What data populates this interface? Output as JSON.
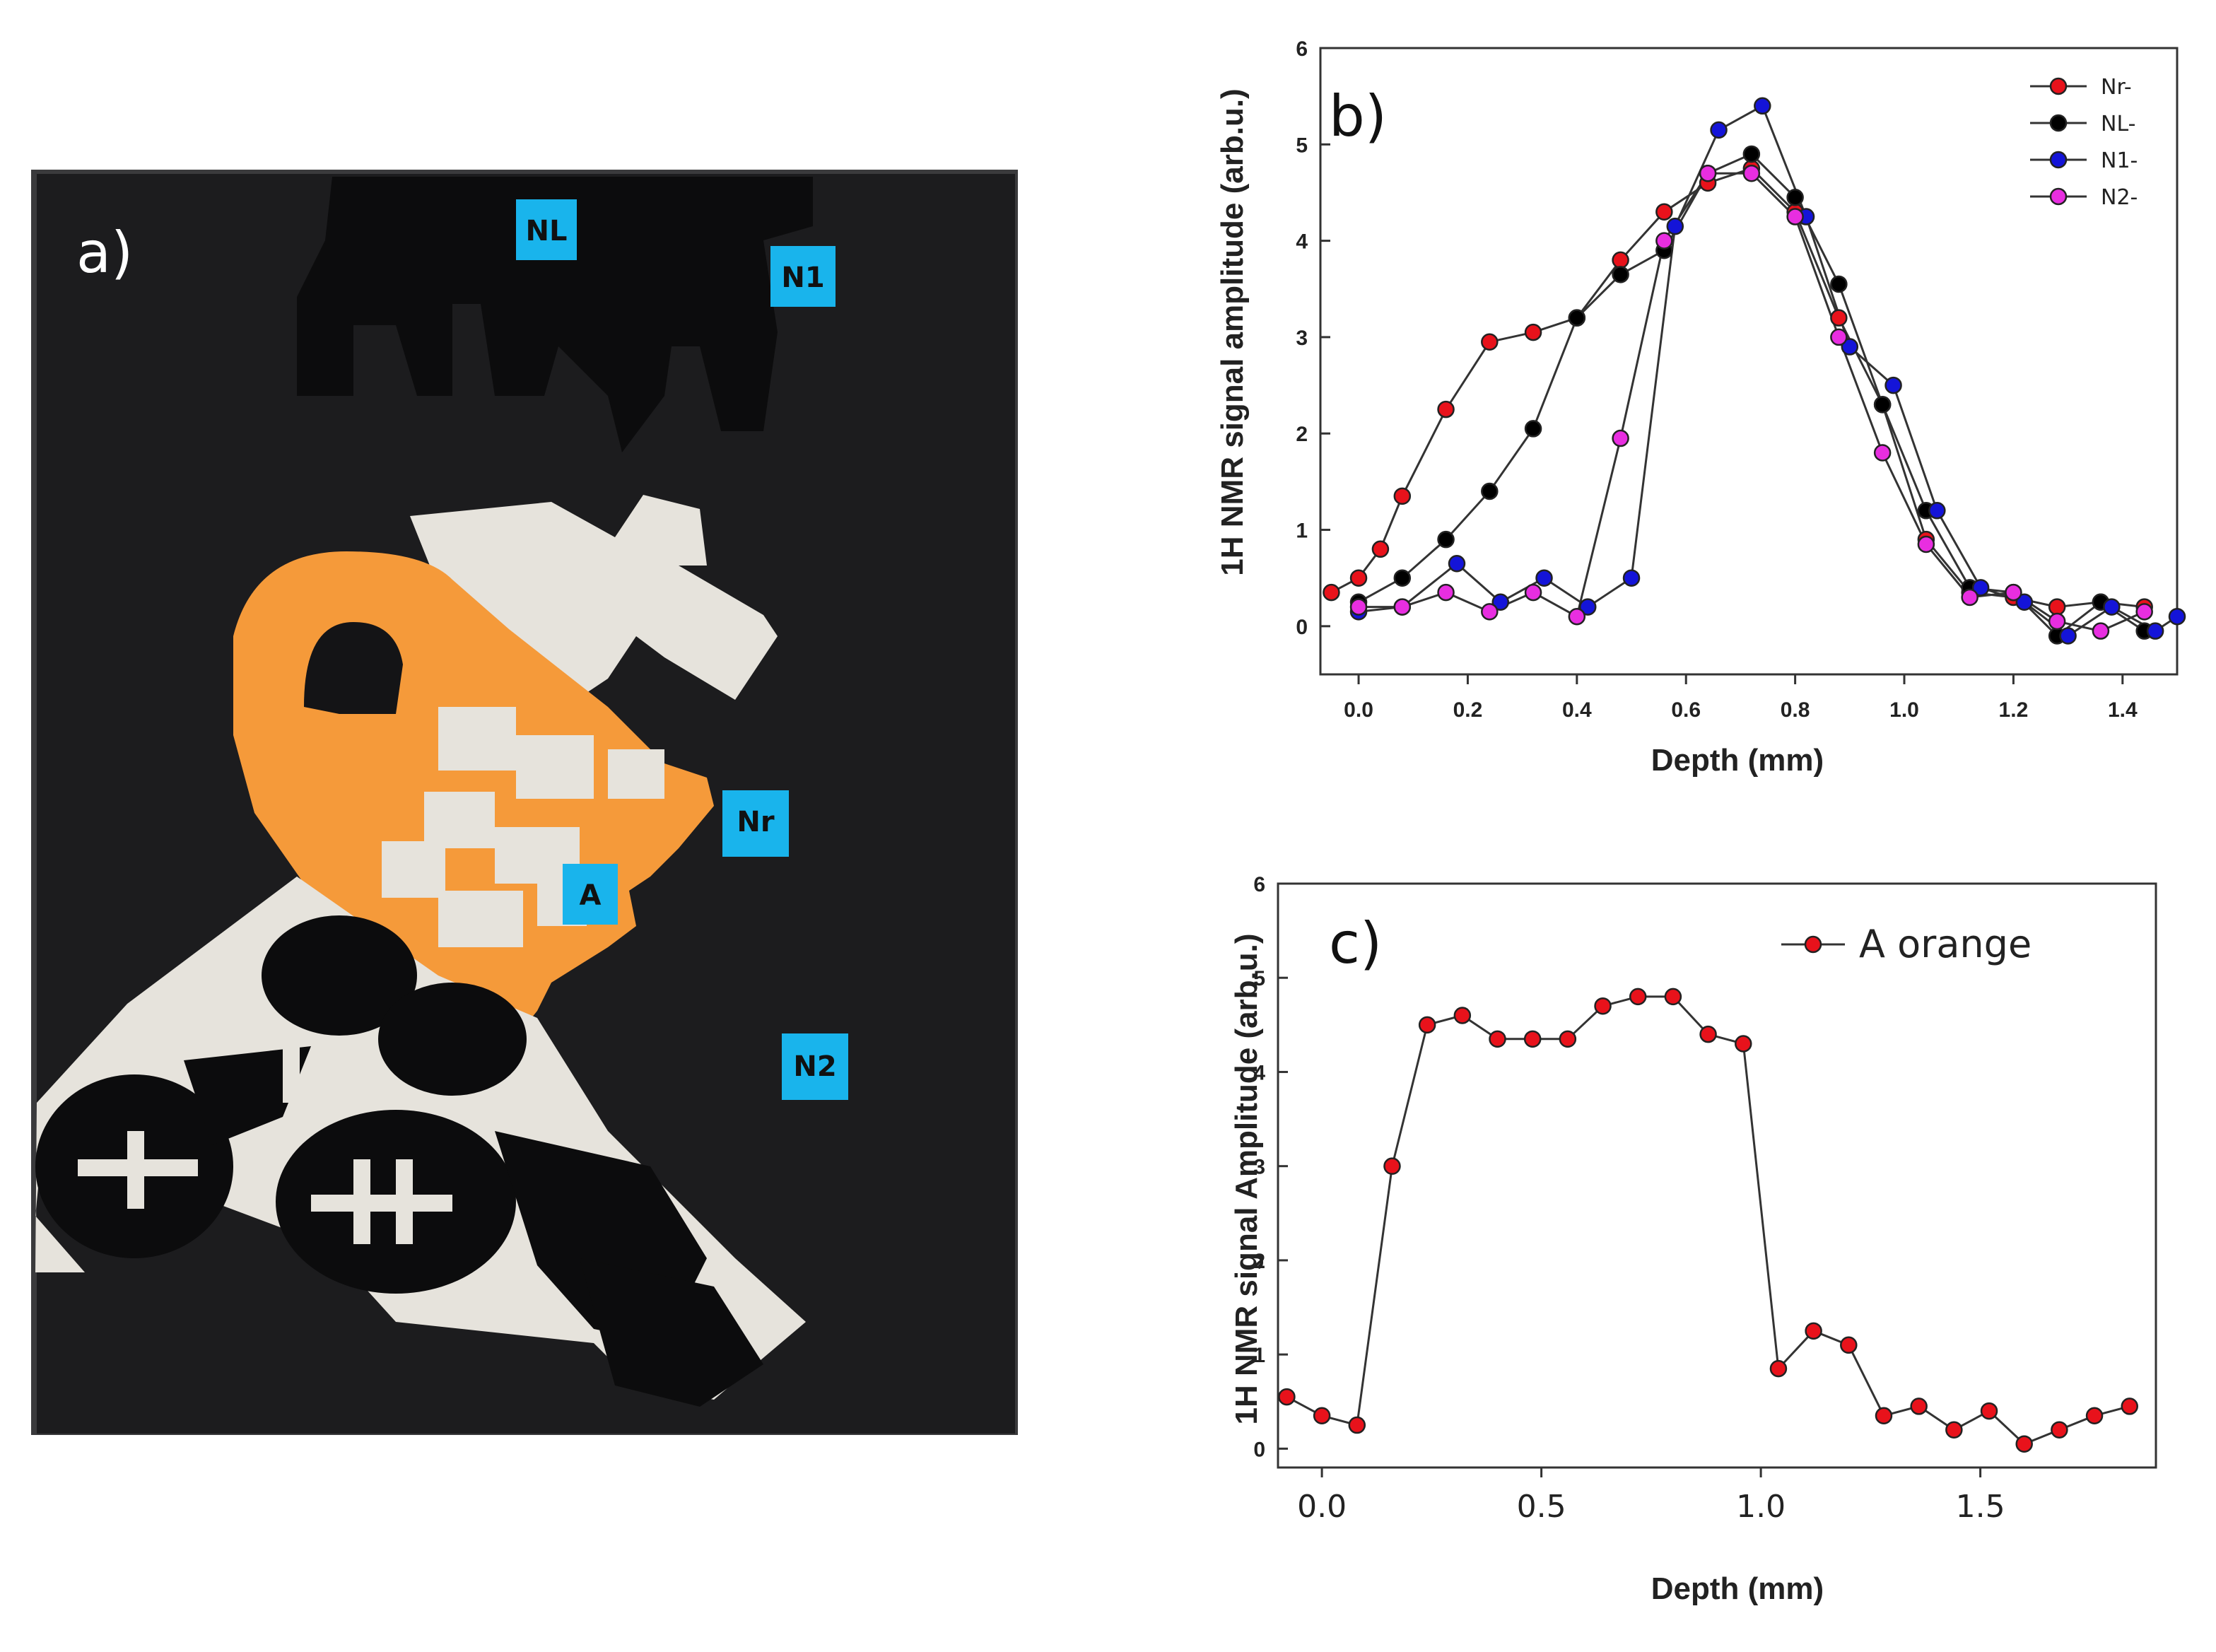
{
  "panel_a": {
    "label": "a)",
    "tags": [
      "NL",
      "N1",
      "Nr",
      "A",
      "N2"
    ]
  },
  "colors": {
    "red": "#e8121b",
    "black": "#000000",
    "blue": "#1414d8",
    "magenta": "#e82ee0",
    "sky": "#19b4ec",
    "orange": "#f59a3a",
    "cream": "#e6e3dc",
    "canvas": "#1c1c1e"
  },
  "chart_data": [
    {
      "type": "line",
      "panel_label": "b)",
      "xlabel": "Depth (mm)",
      "ylabel": "1H NMR signal  amplitude (arb.u.)",
      "xlim": [
        -0.07,
        1.5
      ],
      "ylim": [
        -0.5,
        6
      ],
      "xticks": [
        0.0,
        0.2,
        0.4,
        0.6,
        0.8,
        1.0,
        1.2,
        1.4
      ],
      "xtick_labels": [
        "0.0",
        "0.2",
        "0.4",
        "0.6",
        "0.8",
        "1.0",
        "1.2",
        "1.4"
      ],
      "yticks": [
        0,
        1,
        2,
        3,
        4,
        5,
        6
      ],
      "ytick_labels": [
        "0",
        "1",
        "2",
        "3",
        "4",
        "5",
        "6"
      ],
      "legend_position": "top-right",
      "series": [
        {
          "name": "Nr",
          "legend_label": "Nr-",
          "color": "#e8121b",
          "x": [
            -0.05,
            0.0,
            0.04,
            0.08,
            0.16,
            0.24,
            0.32,
            0.4,
            0.48,
            0.56,
            0.64,
            0.72,
            0.8,
            0.88,
            0.96,
            1.04,
            1.12,
            1.2,
            1.28,
            1.36,
            1.44
          ],
          "y": [
            0.35,
            0.5,
            0.8,
            1.35,
            2.25,
            2.95,
            3.05,
            3.2,
            3.8,
            4.3,
            4.6,
            4.75,
            4.3,
            3.2,
            2.3,
            0.9,
            0.35,
            0.3,
            0.2,
            0.25,
            0.2
          ]
        },
        {
          "name": "NL",
          "legend_label": "NL-",
          "color": "#000000",
          "x": [
            0.0,
            0.08,
            0.16,
            0.24,
            0.32,
            0.4,
            0.48,
            0.56,
            0.64,
            0.72,
            0.8,
            0.88,
            0.96,
            1.04,
            1.12,
            1.2,
            1.28,
            1.36,
            1.44
          ],
          "y": [
            0.25,
            0.5,
            0.9,
            1.4,
            2.05,
            3.2,
            3.65,
            3.9,
            4.7,
            4.9,
            4.45,
            3.55,
            2.3,
            1.2,
            0.4,
            0.35,
            -0.1,
            0.25,
            -0.05
          ]
        },
        {
          "name": "N1",
          "legend_label": "N1-",
          "color": "#1414d8",
          "x": [
            0.0,
            0.08,
            0.18,
            0.26,
            0.34,
            0.42,
            0.5,
            0.58,
            0.66,
            0.74,
            0.82,
            0.9,
            0.98,
            1.06,
            1.14,
            1.22,
            1.3,
            1.38,
            1.46,
            1.5
          ],
          "y": [
            0.15,
            0.2,
            0.65,
            0.25,
            0.5,
            0.2,
            0.5,
            4.15,
            5.15,
            5.4,
            4.25,
            2.9,
            2.5,
            1.2,
            0.4,
            0.25,
            -0.1,
            0.2,
            -0.05,
            0.1
          ]
        },
        {
          "name": "N2",
          "legend_label": "N2-",
          "color": "#e82ee0",
          "x": [
            0.0,
            0.08,
            0.16,
            0.24,
            0.32,
            0.4,
            0.48,
            0.56,
            0.64,
            0.72,
            0.8,
            0.88,
            0.96,
            1.04,
            1.12,
            1.2,
            1.28,
            1.36,
            1.44
          ],
          "y": [
            0.2,
            0.2,
            0.35,
            0.15,
            0.35,
            0.1,
            1.95,
            4.0,
            4.7,
            4.7,
            4.25,
            3.0,
            1.8,
            0.85,
            0.3,
            0.35,
            0.05,
            -0.05,
            0.15
          ]
        }
      ]
    },
    {
      "type": "line",
      "panel_label": "c)",
      "xlabel": "Depth (mm)",
      "ylabel": "1H NMR signal Amplitude (arb.u.)",
      "xlim": [
        -0.1,
        1.9
      ],
      "ylim": [
        -0.2,
        6
      ],
      "xticks": [
        0.0,
        0.5,
        1.0,
        1.5
      ],
      "xtick_labels": [
        "0.0",
        "0.5",
        "1.0",
        "1.5"
      ],
      "yticks": [
        0,
        1,
        2,
        3,
        4,
        5,
        6
      ],
      "ytick_labels": [
        "0",
        "1",
        "2",
        "3",
        "4",
        "5",
        "6"
      ],
      "legend_position": "top-right",
      "series": [
        {
          "name": "A orange",
          "legend_label": "A orange",
          "color": "#e8121b",
          "x": [
            -0.08,
            0.0,
            0.08,
            0.16,
            0.24,
            0.32,
            0.4,
            0.48,
            0.56,
            0.64,
            0.72,
            0.8,
            0.88,
            0.96,
            1.04,
            1.12,
            1.2,
            1.28,
            1.36,
            1.44,
            1.52,
            1.6,
            1.68,
            1.76,
            1.84
          ],
          "y": [
            0.55,
            0.35,
            0.25,
            3.0,
            4.5,
            4.6,
            4.35,
            4.35,
            4.35,
            4.7,
            4.8,
            4.8,
            4.4,
            4.3,
            0.85,
            1.25,
            1.1,
            0.35,
            0.45,
            0.2,
            0.4,
            0.05,
            0.2,
            0.35,
            0.45
          ]
        }
      ]
    }
  ]
}
